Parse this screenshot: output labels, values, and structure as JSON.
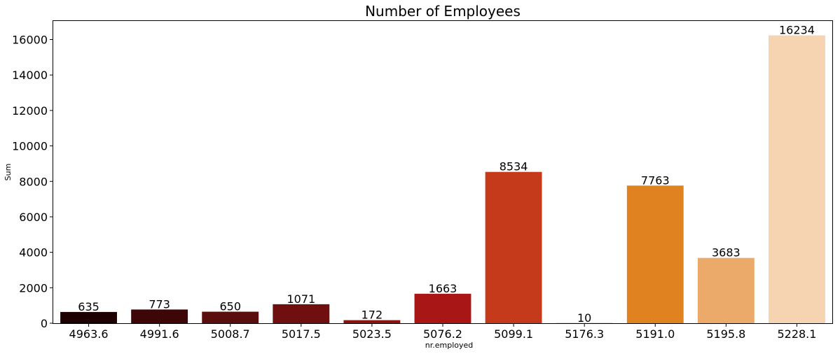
{
  "chart_data": {
    "type": "bar",
    "title": "Number of Employees",
    "xlabel": "nr.employed",
    "ylabel": "Sum",
    "categories": [
      "4963.6",
      "4991.6",
      "5008.7",
      "5017.5",
      "5023.5",
      "5076.2",
      "5099.1",
      "5176.3",
      "5191.0",
      "5195.8",
      "5228.1"
    ],
    "values": [
      635,
      773,
      650,
      1071,
      172,
      1663,
      8534,
      10,
      7763,
      3683,
      16234
    ],
    "data_labels": [
      "635",
      "773",
      "650",
      "1071",
      "172",
      "1663",
      "8534",
      "10",
      "7763",
      "3683",
      "16234"
    ],
    "colors": [
      "#1e0000",
      "#3c0706",
      "#5a0e0d",
      "#700f0f",
      "#8b1410",
      "#a81616",
      "#c43a1a",
      "#d95a1a",
      "#e0821f",
      "#ecaa6a",
      "#f6d4b2"
    ],
    "yticks": [
      0,
      2000,
      4000,
      6000,
      8000,
      10000,
      12000,
      14000,
      16000
    ],
    "ylim": [
      0,
      17046
    ],
    "grid": false,
    "legend": "none"
  }
}
